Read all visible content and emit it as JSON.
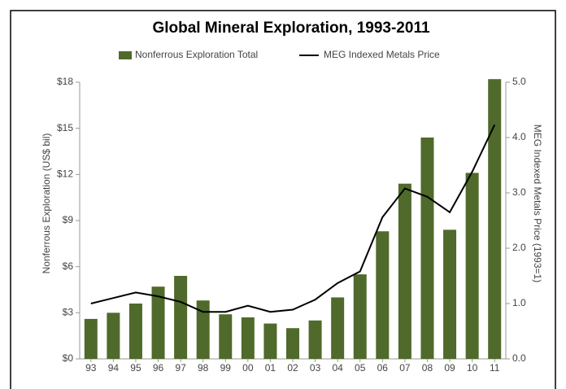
{
  "chart_data": {
    "type": "bar",
    "title": "Global Mineral Exploration, 1993-2011",
    "y_label": "Nonferrous Exploration (US$ bil)",
    "y2_label": "MEG Indexed Metals Price  (1993=1)",
    "categories": [
      "93",
      "94",
      "95",
      "96",
      "97",
      "98",
      "99",
      "00",
      "01",
      "02",
      "03",
      "04",
      "05",
      "06",
      "07",
      "08",
      "09",
      "10",
      "11"
    ],
    "series": [
      {
        "name": "Nonferrous Exploration Total",
        "type": "bar",
        "color": "#4f6a2b",
        "values": [
          2.6,
          3.0,
          3.6,
          4.7,
          5.4,
          3.8,
          2.9,
          2.7,
          2.3,
          2.0,
          2.5,
          4.0,
          5.5,
          8.3,
          11.4,
          14.4,
          8.4,
          12.1,
          18.2
        ]
      },
      {
        "name": "MEG Indexed Metals Price",
        "type": "line",
        "color": "#000000",
        "axis": "y2",
        "values": [
          1.0,
          1.1,
          1.2,
          1.13,
          1.03,
          0.85,
          0.85,
          0.96,
          0.85,
          0.89,
          1.07,
          1.37,
          1.58,
          2.56,
          3.08,
          2.93,
          2.65,
          3.38,
          4.23
        ]
      }
    ],
    "ylim": [
      0,
      18
    ],
    "yticks": [
      {
        "value": 0,
        "label": "$0"
      },
      {
        "value": 3,
        "label": "$3"
      },
      {
        "value": 6,
        "label": "$6"
      },
      {
        "value": 9,
        "label": "$9"
      },
      {
        "value": 12,
        "label": "$12"
      },
      {
        "value": 15,
        "label": "$15"
      },
      {
        "value": 18,
        "label": "$18"
      }
    ],
    "y2lim": [
      0,
      5
    ],
    "y2ticks": [
      {
        "value": 0,
        "label": "0.0"
      },
      {
        "value": 1,
        "label": "1.0"
      },
      {
        "value": 2,
        "label": "2.0"
      },
      {
        "value": 3,
        "label": "3.0"
      },
      {
        "value": 4,
        "label": "4.0"
      },
      {
        "value": 5,
        "label": "5.0"
      }
    ],
    "legend": "top"
  }
}
